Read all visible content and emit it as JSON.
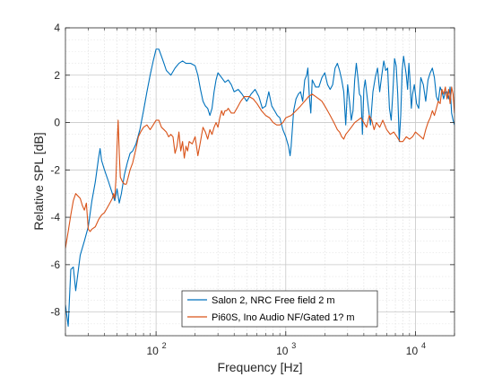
{
  "chart_data": {
    "type": "line",
    "title": "",
    "xlabel": "Frequency [Hz]",
    "ylabel": "Relative SPL [dB]",
    "xscale": "log",
    "xlim": [
      20,
      20000
    ],
    "ylim": [
      -9,
      4
    ],
    "grid": "major and minor",
    "legend_position": "bottom-center",
    "x_ticks": [
      {
        "value": 100,
        "base": "10",
        "exp": "2"
      },
      {
        "value": 1000,
        "base": "10",
        "exp": "3"
      },
      {
        "value": 10000,
        "base": "10",
        "exp": "4"
      }
    ],
    "y_ticks": [
      -8,
      -6,
      -4,
      -2,
      0,
      2,
      4
    ],
    "series": [
      {
        "name": "Salon 2, NRC Free field 2 m",
        "color": "#0072BD",
        "points": [
          [
            20,
            -7.7
          ],
          [
            21,
            -8.6
          ],
          [
            22,
            -6.2
          ],
          [
            23,
            -6.1
          ],
          [
            24,
            -7.1
          ],
          [
            26,
            -5.6
          ],
          [
            28,
            -5.0
          ],
          [
            30,
            -4.4
          ],
          [
            32,
            -3.3
          ],
          [
            34,
            -2.5
          ],
          [
            36,
            -1.5
          ],
          [
            37,
            -1.1
          ],
          [
            38,
            -1.6
          ],
          [
            40,
            -2.0
          ],
          [
            43,
            -2.5
          ],
          [
            46,
            -3.0
          ],
          [
            48,
            -3.3
          ],
          [
            50,
            -2.8
          ],
          [
            52,
            -3.4
          ],
          [
            54,
            -3.0
          ],
          [
            57,
            -2.2
          ],
          [
            60,
            -1.7
          ],
          [
            63,
            -1.3
          ],
          [
            66,
            -1.2
          ],
          [
            70,
            -0.9
          ],
          [
            75,
            -0.3
          ],
          [
            80,
            0.5
          ],
          [
            85,
            1.3
          ],
          [
            90,
            2.0
          ],
          [
            95,
            2.6
          ],
          [
            100,
            3.1
          ],
          [
            105,
            3.1
          ],
          [
            110,
            2.8
          ],
          [
            115,
            2.5
          ],
          [
            120,
            2.2
          ],
          [
            130,
            2.0
          ],
          [
            140,
            2.3
          ],
          [
            150,
            2.5
          ],
          [
            160,
            2.6
          ],
          [
            170,
            2.5
          ],
          [
            185,
            2.5
          ],
          [
            200,
            2.4
          ],
          [
            210,
            2.0
          ],
          [
            220,
            1.4
          ],
          [
            230,
            0.9
          ],
          [
            240,
            0.7
          ],
          [
            250,
            0.6
          ],
          [
            260,
            0.3
          ],
          [
            270,
            0.6
          ],
          [
            280,
            1.3
          ],
          [
            290,
            1.8
          ],
          [
            300,
            2.1
          ],
          [
            320,
            1.9
          ],
          [
            340,
            1.7
          ],
          [
            360,
            1.8
          ],
          [
            380,
            1.6
          ],
          [
            400,
            1.3
          ],
          [
            430,
            1.4
          ],
          [
            460,
            1.2
          ],
          [
            500,
            0.9
          ],
          [
            540,
            1.2
          ],
          [
            580,
            1.4
          ],
          [
            620,
            1.1
          ],
          [
            660,
            0.6
          ],
          [
            700,
            0.7
          ],
          [
            740,
            1.3
          ],
          [
            780,
            0.7
          ],
          [
            820,
            0.5
          ],
          [
            860,
            0.3
          ],
          [
            900,
            0.2
          ],
          [
            950,
            -0.3
          ],
          [
            1000,
            -0.6
          ],
          [
            1050,
            -1.0
          ],
          [
            1080,
            -1.4
          ],
          [
            1100,
            -1.0
          ],
          [
            1150,
            0.5
          ],
          [
            1200,
            1.0
          ],
          [
            1250,
            1.2
          ],
          [
            1300,
            1.3
          ],
          [
            1350,
            0.9
          ],
          [
            1400,
            1.8
          ],
          [
            1450,
            2.0
          ],
          [
            1480,
            2.3
          ],
          [
            1520,
            1.1
          ],
          [
            1560,
            0.4
          ],
          [
            1600,
            1.8
          ],
          [
            1700,
            1.5
          ],
          [
            1800,
            1.5
          ],
          [
            1900,
            1.9
          ],
          [
            2000,
            2.1
          ],
          [
            2100,
            1.6
          ],
          [
            2200,
            1.4
          ],
          [
            2300,
            1.6
          ],
          [
            2400,
            2.3
          ],
          [
            2500,
            2.5
          ],
          [
            2600,
            2.2
          ],
          [
            2700,
            1.8
          ],
          [
            2800,
            1.3
          ],
          [
            2900,
            -0.1
          ],
          [
            3000,
            1.6
          ],
          [
            3100,
            0.9
          ],
          [
            3200,
            0.1
          ],
          [
            3300,
            0.5
          ],
          [
            3400,
            1.8
          ],
          [
            3500,
            2.5
          ],
          [
            3600,
            1.9
          ],
          [
            3700,
            1.2
          ],
          [
            3800,
            1.1
          ],
          [
            3900,
            -0.5
          ],
          [
            4000,
            1.4
          ],
          [
            4100,
            1.8
          ],
          [
            4300,
            0.8
          ],
          [
            4500,
            -0.1
          ],
          [
            4700,
            1.3
          ],
          [
            4900,
            1.9
          ],
          [
            5100,
            2.3
          ],
          [
            5300,
            1.3
          ],
          [
            5500,
            2.0
          ],
          [
            5700,
            2.6
          ],
          [
            5900,
            2.2
          ],
          [
            6100,
            2.3
          ],
          [
            6300,
            0.6
          ],
          [
            6500,
            0.1
          ],
          [
            6700,
            1.3
          ],
          [
            6900,
            2.7
          ],
          [
            7100,
            2.4
          ],
          [
            7300,
            1.2
          ],
          [
            7500,
            -0.8
          ],
          [
            7700,
            0.3
          ],
          [
            7900,
            2.2
          ],
          [
            8100,
            2.8
          ],
          [
            8300,
            2.4
          ],
          [
            8500,
            2.0
          ],
          [
            8700,
            1.4
          ],
          [
            8900,
            2.5
          ],
          [
            9100,
            1.7
          ],
          [
            9300,
            0.6
          ],
          [
            9500,
            1.2
          ],
          [
            9800,
            1.6
          ],
          [
            10200,
            0.8
          ],
          [
            10600,
            0.6
          ],
          [
            11000,
            1.9
          ],
          [
            11500,
            1.6
          ],
          [
            12000,
            0.9
          ],
          [
            12500,
            1.8
          ],
          [
            13000,
            2.1
          ],
          [
            13500,
            2.3
          ],
          [
            14000,
            1.9
          ],
          [
            14500,
            1.1
          ],
          [
            15000,
            0.9
          ],
          [
            15500,
            1.5
          ],
          [
            16000,
            1.3
          ],
          [
            16500,
            1.0
          ],
          [
            17000,
            1.3
          ],
          [
            17500,
            1.3
          ],
          [
            18000,
            1.0
          ],
          [
            18500,
            1.5
          ],
          [
            19000,
            0.4
          ],
          [
            19500,
            0.1
          ],
          [
            20000,
            -0.1
          ]
        ]
      },
      {
        "name": "Pi60S, Ino Audio NF/Gated 1? m",
        "color": "#D95319",
        "points": [
          [
            20,
            -5.3
          ],
          [
            21,
            -4.6
          ],
          [
            22,
            -3.9
          ],
          [
            23,
            -3.3
          ],
          [
            24,
            -3.0
          ],
          [
            26,
            -3.2
          ],
          [
            27,
            -3.5
          ],
          [
            28,
            -3.7
          ],
          [
            29,
            -3.4
          ],
          [
            30,
            -4.5
          ],
          [
            31,
            -4.6
          ],
          [
            32,
            -4.5
          ],
          [
            34,
            -4.4
          ],
          [
            36,
            -4.1
          ],
          [
            38,
            -3.9
          ],
          [
            40,
            -3.8
          ],
          [
            42,
            -3.6
          ],
          [
            44,
            -3.4
          ],
          [
            46,
            -3.2
          ],
          [
            47,
            -3.0
          ],
          [
            48,
            -3.2
          ],
          [
            49,
            -2.4
          ],
          [
            50,
            -1.0
          ],
          [
            51,
            0.1
          ],
          [
            52,
            -1.3
          ],
          [
            53,
            -2.3
          ],
          [
            55,
            -2.5
          ],
          [
            57,
            -2.6
          ],
          [
            59,
            -2.6
          ],
          [
            61,
            -2.3
          ],
          [
            63,
            -2.0
          ],
          [
            66,
            -1.7
          ],
          [
            70,
            -1.1
          ],
          [
            73,
            -0.6
          ],
          [
            76,
            -0.4
          ],
          [
            80,
            -0.2
          ],
          [
            85,
            -0.1
          ],
          [
            90,
            -0.3
          ],
          [
            95,
            -0.1
          ],
          [
            100,
            0.1
          ],
          [
            105,
            0.1
          ],
          [
            110,
            -0.2
          ],
          [
            115,
            -0.3
          ],
          [
            120,
            -0.4
          ],
          [
            125,
            -0.6
          ],
          [
            130,
            -0.5
          ],
          [
            135,
            -0.6
          ],
          [
            140,
            -1.3
          ],
          [
            145,
            -1.0
          ],
          [
            150,
            -0.4
          ],
          [
            155,
            -1.2
          ],
          [
            160,
            -0.8
          ],
          [
            165,
            -1.5
          ],
          [
            170,
            -1.0
          ],
          [
            175,
            -1.2
          ],
          [
            180,
            -0.8
          ],
          [
            190,
            -0.9
          ],
          [
            200,
            -0.6
          ],
          [
            210,
            -1.4
          ],
          [
            220,
            -0.8
          ],
          [
            230,
            -0.2
          ],
          [
            240,
            -0.4
          ],
          [
            250,
            -0.7
          ],
          [
            260,
            -0.3
          ],
          [
            270,
            -0.5
          ],
          [
            280,
            -0.2
          ],
          [
            290,
            0.0
          ],
          [
            300,
            -0.2
          ],
          [
            310,
            0.2
          ],
          [
            320,
            0.5
          ],
          [
            330,
            0.3
          ],
          [
            340,
            0.5
          ],
          [
            350,
            0.5
          ],
          [
            360,
            0.6
          ],
          [
            380,
            0.4
          ],
          [
            400,
            0.4
          ],
          [
            420,
            0.6
          ],
          [
            450,
            0.9
          ],
          [
            480,
            1.1
          ],
          [
            520,
            1.1
          ],
          [
            560,
            1.0
          ],
          [
            600,
            0.8
          ],
          [
            650,
            0.5
          ],
          [
            700,
            0.3
          ],
          [
            750,
            0.2
          ],
          [
            800,
            0.0
          ],
          [
            850,
            -0.1
          ],
          [
            900,
            -0.1
          ],
          [
            950,
            0.0
          ],
          [
            1000,
            0.2
          ],
          [
            1100,
            0.3
          ],
          [
            1200,
            0.5
          ],
          [
            1300,
            0.7
          ],
          [
            1400,
            0.9
          ],
          [
            1500,
            1.1
          ],
          [
            1600,
            1.2
          ],
          [
            1700,
            1.1
          ],
          [
            1800,
            1.0
          ],
          [
            1900,
            0.9
          ],
          [
            2000,
            0.7
          ],
          [
            2100,
            0.5
          ],
          [
            2200,
            0.3
          ],
          [
            2300,
            0.1
          ],
          [
            2400,
            -0.1
          ],
          [
            2500,
            -0.3
          ],
          [
            2600,
            -0.4
          ],
          [
            2700,
            -0.6
          ],
          [
            2800,
            -0.7
          ],
          [
            2900,
            -0.5
          ],
          [
            3000,
            -0.4
          ],
          [
            3100,
            -0.3
          ],
          [
            3200,
            -0.2
          ],
          [
            3400,
            0.0
          ],
          [
            3600,
            0.1
          ],
          [
            3800,
            0.2
          ],
          [
            4000,
            0.0
          ],
          [
            4200,
            -0.2
          ],
          [
            4400,
            0.3
          ],
          [
            4600,
            0.1
          ],
          [
            4800,
            -0.3
          ],
          [
            5000,
            0.0
          ],
          [
            5300,
            -0.2
          ],
          [
            5600,
            0.1
          ],
          [
            6000,
            -0.3
          ],
          [
            6400,
            -0.5
          ],
          [
            6800,
            -0.4
          ],
          [
            7200,
            -0.6
          ],
          [
            7600,
            -0.8
          ],
          [
            8000,
            -0.8
          ],
          [
            8500,
            -0.6
          ],
          [
            9000,
            -0.7
          ],
          [
            9500,
            -0.6
          ],
          [
            10000,
            -0.4
          ],
          [
            10500,
            -0.5
          ],
          [
            11000,
            -0.6
          ],
          [
            11500,
            -0.7
          ],
          [
            12000,
            -0.3
          ],
          [
            12500,
            0.0
          ],
          [
            13000,
            0.2
          ],
          [
            13500,
            0.5
          ],
          [
            14000,
            0.3
          ],
          [
            14500,
            0.6
          ],
          [
            15000,
            0.9
          ],
          [
            15500,
            0.8
          ],
          [
            16000,
            1.4
          ],
          [
            16500,
            1.2
          ],
          [
            17000,
            1.5
          ],
          [
            17500,
            1.0
          ],
          [
            18000,
            1.4
          ],
          [
            18500,
            0.8
          ],
          [
            19000,
            1.5
          ],
          [
            19500,
            1.2
          ],
          [
            20000,
            0.4
          ]
        ]
      }
    ]
  }
}
